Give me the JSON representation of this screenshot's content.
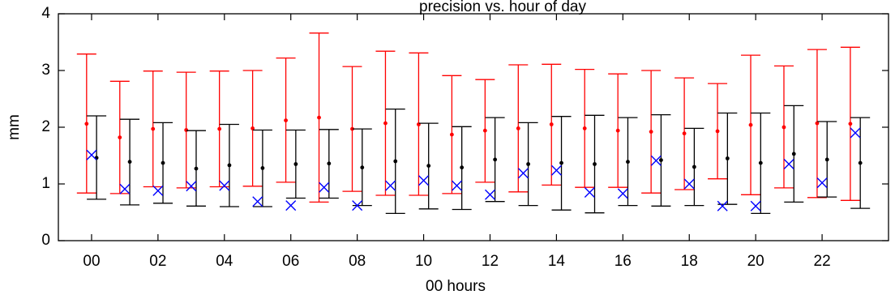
{
  "chart_data": {
    "type": "errorbar",
    "title": "precision vs. hour of day",
    "xlabel": "00 hours",
    "ylabel": "mm",
    "ylim": [
      0,
      4
    ],
    "xlim": [
      -1,
      24
    ],
    "x_ticks": [
      0,
      2,
      4,
      6,
      8,
      10,
      12,
      14,
      16,
      18,
      20,
      22
    ],
    "x_tick_labels": [
      "00",
      "02",
      "04",
      "06",
      "08",
      "10",
      "12",
      "14",
      "16",
      "18",
      "20",
      "22"
    ],
    "y_ticks": [
      0,
      1,
      2,
      3,
      4
    ],
    "y_tick_labels": [
      "0",
      "1",
      "2",
      "3",
      "4"
    ],
    "grid": false,
    "hours": [
      0,
      1,
      2,
      3,
      4,
      5,
      6,
      7,
      8,
      9,
      10,
      11,
      12,
      13,
      14,
      15,
      16,
      17,
      18,
      19,
      20,
      21,
      22,
      23
    ],
    "series": [
      {
        "color": "#ff0000",
        "marker": "dot",
        "x_offset": -0.15,
        "mean": [
          2.06,
          1.82,
          1.97,
          1.95,
          1.97,
          1.98,
          2.12,
          2.17,
          1.97,
          2.07,
          2.05,
          1.87,
          1.94,
          1.98,
          2.05,
          1.98,
          1.94,
          1.92,
          1.89,
          1.93,
          2.04,
          2.0,
          2.07,
          2.06
        ],
        "lower": [
          0.84,
          0.83,
          0.95,
          0.93,
          0.95,
          0.96,
          1.03,
          0.68,
          0.87,
          0.8,
          0.8,
          0.83,
          1.03,
          0.86,
          0.98,
          0.94,
          0.94,
          0.84,
          0.9,
          1.09,
          0.81,
          0.93,
          0.76,
          0.71
        ],
        "upper": [
          3.29,
          2.81,
          2.99,
          2.97,
          2.99,
          3.0,
          3.22,
          3.66,
          3.07,
          3.34,
          3.31,
          2.91,
          2.84,
          3.1,
          3.11,
          3.02,
          2.94,
          3.0,
          2.87,
          2.77,
          3.27,
          3.08,
          3.37,
          3.41
        ]
      },
      {
        "color": "#000000",
        "marker": "dot",
        "x_offset": 0.15,
        "mean": [
          1.46,
          1.39,
          1.37,
          1.27,
          1.33,
          1.28,
          1.35,
          1.36,
          1.29,
          1.4,
          1.32,
          1.29,
          1.43,
          1.35,
          1.37,
          1.35,
          1.39,
          1.42,
          1.3,
          1.45,
          1.37,
          1.53,
          1.43,
          1.37
        ],
        "lower": [
          0.73,
          0.63,
          0.66,
          0.61,
          0.6,
          0.6,
          0.75,
          0.75,
          0.62,
          0.48,
          0.56,
          0.55,
          0.69,
          0.62,
          0.54,
          0.49,
          0.62,
          0.61,
          0.62,
          0.64,
          0.48,
          0.68,
          0.77,
          0.57
        ],
        "upper": [
          2.2,
          2.14,
          2.08,
          1.94,
          2.05,
          1.95,
          1.95,
          1.96,
          1.97,
          2.32,
          2.07,
          2.01,
          2.17,
          2.08,
          2.19,
          2.21,
          2.17,
          2.22,
          1.98,
          2.25,
          2.25,
          2.38,
          2.1,
          2.17
        ]
      },
      {
        "color": "#0000ff",
        "marker": "x",
        "x_offset": 0,
        "values": [
          1.51,
          0.91,
          0.88,
          0.96,
          0.97,
          0.69,
          0.62,
          0.94,
          0.62,
          0.97,
          1.06,
          0.97,
          0.81,
          1.19,
          1.24,
          0.85,
          0.83,
          1.41,
          1.0,
          0.61,
          0.61,
          1.35,
          1.02,
          1.9
        ]
      }
    ]
  }
}
